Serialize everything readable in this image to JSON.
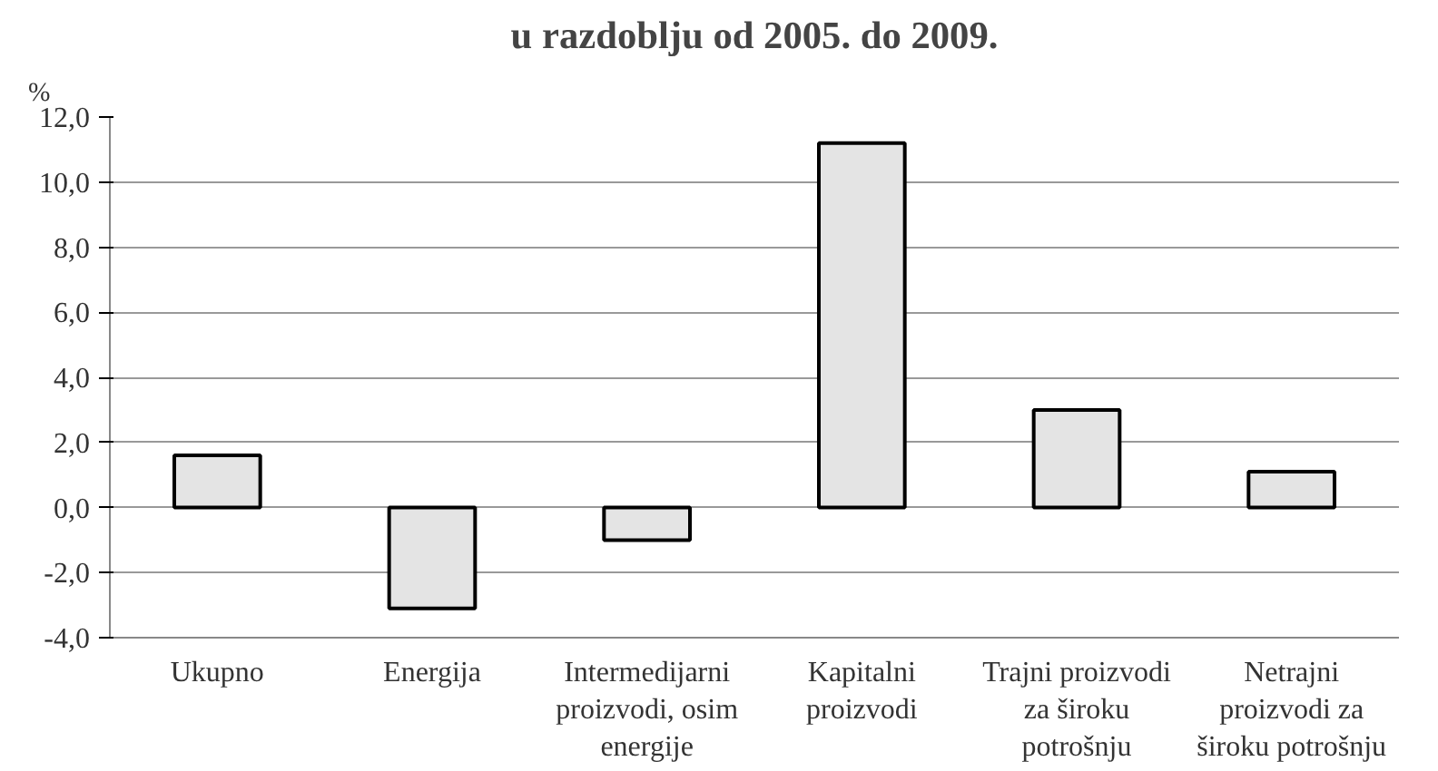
{
  "chart_data": {
    "type": "bar",
    "title": "u razdoblju od 2005. do 2009.",
    "ylabel": "%",
    "categories": [
      "Ukupno",
      "Energija",
      "Intermedijarni\nproizvodi, osim\nenergije",
      "Kapitalni\nproizvodi",
      "Trajni proizvodi\nza široku\npotrošnju",
      "Netrajni\nproizvodi za\nširoku potrošnju"
    ],
    "values": [
      1.6,
      -3.1,
      -1.0,
      11.2,
      3.0,
      1.1
    ],
    "color": "#e4e4e4",
    "ylim": [
      -4,
      12
    ],
    "yticks": [
      {
        "value": -4,
        "label": "-4,0"
      },
      {
        "value": -2,
        "label": "-2,0"
      },
      {
        "value": 0,
        "label": "0,0"
      },
      {
        "value": 2,
        "label": "2,0"
      },
      {
        "value": 4,
        "label": "4,0"
      },
      {
        "value": 6,
        "label": "6,0"
      },
      {
        "value": 8,
        "label": "8,0"
      },
      {
        "value": 10,
        "label": "10,0"
      },
      {
        "value": 12,
        "label": "12,0"
      }
    ],
    "grid": "y"
  }
}
